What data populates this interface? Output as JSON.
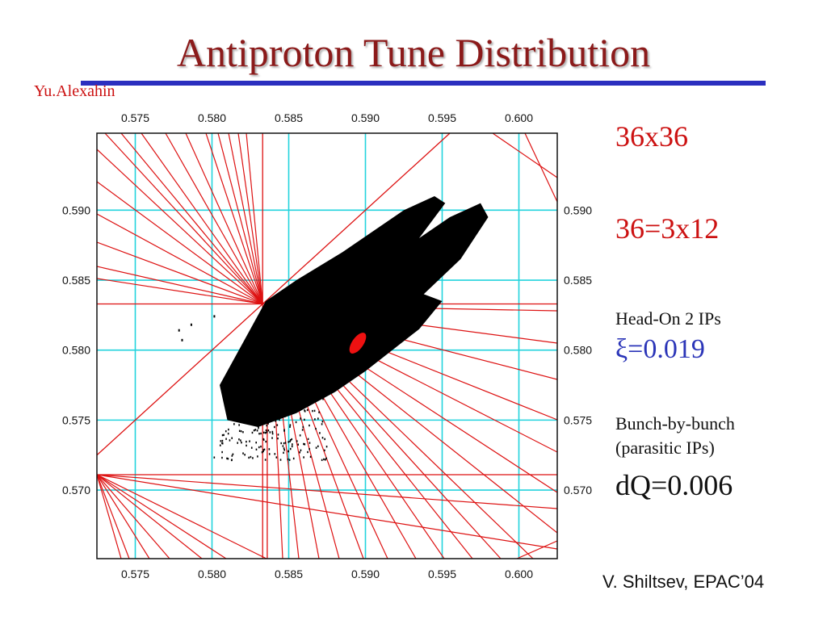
{
  "slide": {
    "title": "Antiproton Tune Distribution",
    "author": "Yu.Alexahin",
    "credit": "V. Shiltsev, EPAC’04",
    "notes": {
      "config": "36x36",
      "decomposition": "36=3x12",
      "head_on_label": "Head-On  2 IPs",
      "xi_label": "ξ=0.019",
      "bbb_line1": "Bunch-by-bunch",
      "bbb_line2": "(parasitic IPs)",
      "dq_label": "dQ=0.006"
    },
    "colors": {
      "title": "#8b1a1a",
      "rule": "#2b2fbf",
      "resonance": "#dd1111",
      "grid": "#22d3dd",
      "xi": "#2b35b8"
    }
  },
  "chart_data": {
    "type": "scatter",
    "title": "",
    "xlabel": "",
    "ylabel": "",
    "xlim": [
      0.5725,
      0.6025
    ],
    "ylim": [
      0.5651,
      0.5955
    ],
    "x_ticks": [
      "0.575",
      "0.580",
      "0.585",
      "0.590",
      "0.595",
      "0.600"
    ],
    "y_ticks": [
      "0.590",
      "0.585",
      "0.580",
      "0.575",
      "0.570"
    ],
    "y_tick_values": [
      0.59,
      0.585,
      0.58,
      0.575,
      0.57
    ],
    "x_tick_values": [
      0.575,
      0.58,
      0.585,
      0.59,
      0.595,
      0.6
    ],
    "grid": true,
    "series": [
      {
        "kind": "tune-footprint",
        "color": "#000000",
        "outline": [
          [
            0.5835,
            0.5835
          ],
          [
            0.5855,
            0.585
          ],
          [
            0.5885,
            0.587
          ],
          [
            0.5925,
            0.59
          ],
          [
            0.5945,
            0.591
          ],
          [
            0.5952,
            0.5905
          ],
          [
            0.5935,
            0.588
          ],
          [
            0.5955,
            0.5895
          ],
          [
            0.5975,
            0.5905
          ],
          [
            0.598,
            0.5895
          ],
          [
            0.5962,
            0.5865
          ],
          [
            0.5938,
            0.584
          ],
          [
            0.595,
            0.5835
          ],
          [
            0.5935,
            0.5815
          ],
          [
            0.59,
            0.5785
          ],
          [
            0.588,
            0.577
          ],
          [
            0.5855,
            0.5755
          ],
          [
            0.583,
            0.5745
          ],
          [
            0.581,
            0.575
          ],
          [
            0.5805,
            0.5775
          ],
          [
            0.5815,
            0.5795
          ],
          [
            0.5825,
            0.5815
          ]
        ]
      },
      {
        "kind": "nominal-tune",
        "color": "#ee1111",
        "points": [
          [
            0.5895,
            0.5805
          ]
        ]
      }
    ],
    "resonance_lines": {
      "color": "#dd1111",
      "horizontal": [
        0.5833,
        0.5711
      ],
      "vertical": [
        0.5833
      ],
      "diagonal": [
        [
          0.5725,
          0.5725,
          0.5955,
          0.5955
        ]
      ],
      "fan_centers": [
        [
          0.5833,
          0.5833
        ],
        [
          0.5725,
          0.5711
        ]
      ]
    }
  }
}
